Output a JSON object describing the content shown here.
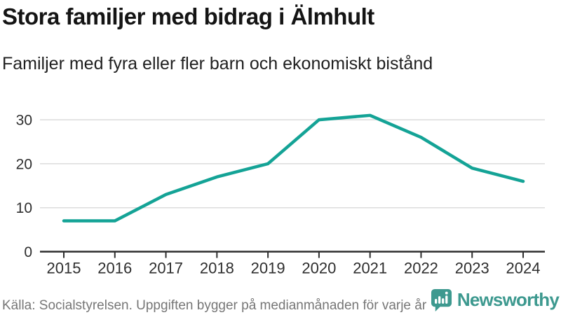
{
  "header": {
    "title": "Stora familjer med bidrag i Älmhult",
    "subtitle": "Familjer med fyra eller fler barn och ekonomiskt bistånd"
  },
  "chart_data": {
    "type": "line",
    "categories": [
      "2015",
      "2016",
      "2017",
      "2018",
      "2019",
      "2020",
      "2021",
      "2022",
      "2023",
      "2024"
    ],
    "values": [
      7,
      7,
      13,
      17,
      20,
      30,
      31,
      26,
      19,
      16
    ],
    "title": "Stora familjer med bidrag i Älmhult",
    "xlabel": "",
    "ylabel": "",
    "ylim": [
      0,
      33
    ],
    "yticks": [
      0,
      10,
      20,
      30
    ],
    "grid": true,
    "legend": "none",
    "line_color": "#14a396",
    "grid_color": "#dcdcdc",
    "axis_color": "#2e2e2e",
    "tick_label_color": "#2e2e2e"
  },
  "footer": {
    "source": "Källa: Socialstyrelsen. Uppgiften bygger på medianmånaden för varje år",
    "brand": "Newsworthy",
    "brand_color": "#3d998f"
  }
}
